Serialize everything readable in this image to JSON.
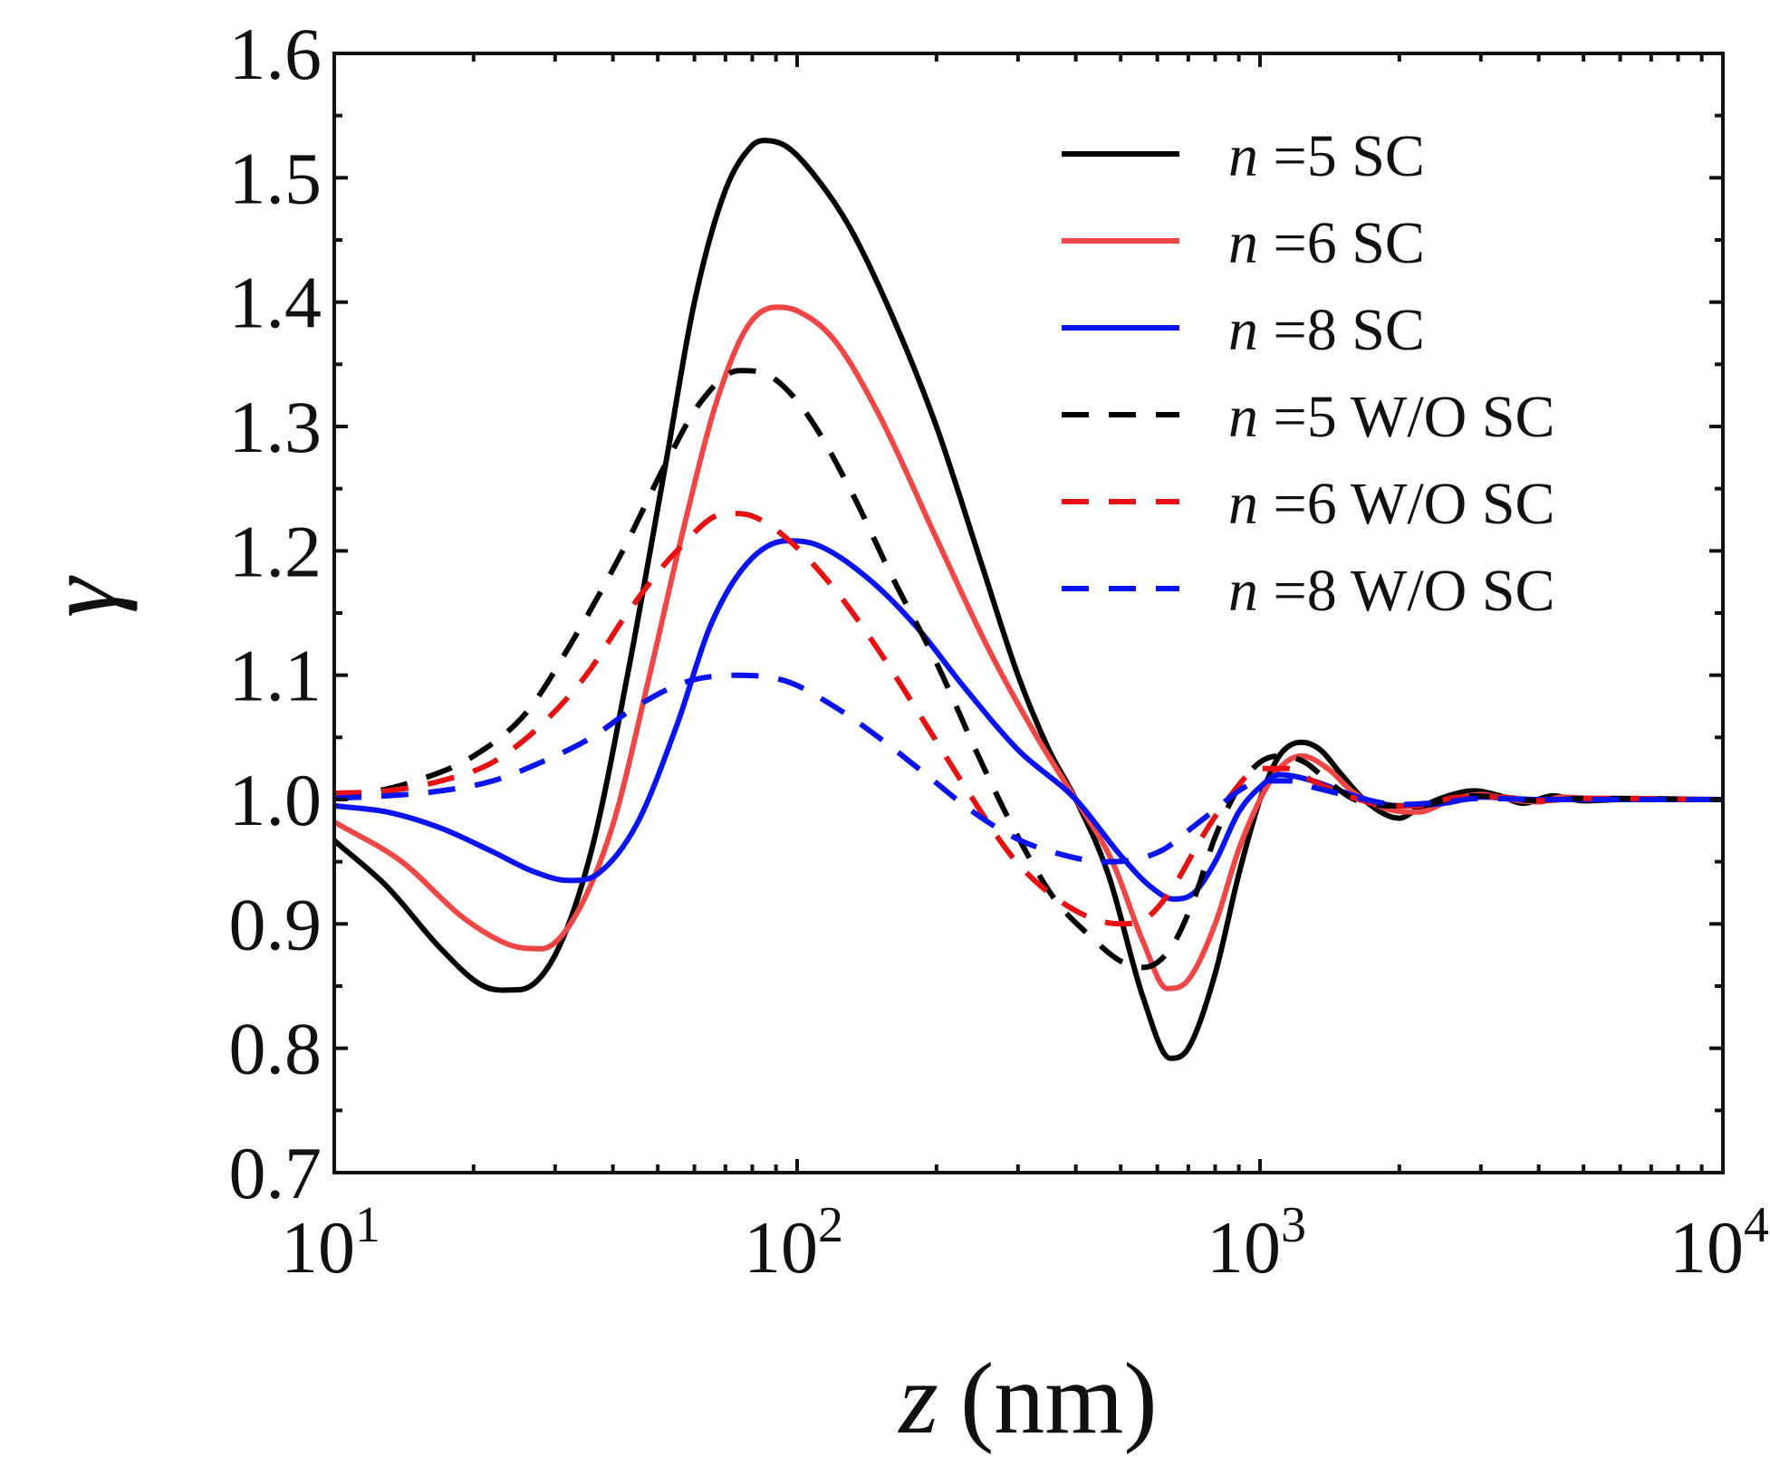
{
  "chart_data": {
    "type": "line",
    "title": "",
    "xlabel_var": "z",
    "xlabel_unit": "(nm)",
    "ylabel": "γ",
    "xscale": "log",
    "xlim": [
      10,
      10000
    ],
    "ylim": [
      0.7,
      1.6
    ],
    "grid": false,
    "legend_position": "top-right",
    "x_ticks": [
      {
        "base": "10",
        "exp": "1",
        "value": 10
      },
      {
        "base": "10",
        "exp": "2",
        "value": 100
      },
      {
        "base": "10",
        "exp": "3",
        "value": 1000
      },
      {
        "base": "10",
        "exp": "4",
        "value": 10000
      }
    ],
    "y_ticks": [
      "0.7",
      "0.8",
      "0.9",
      "1.0",
      "1.1",
      "1.2",
      "1.3",
      "1.4",
      "1.5",
      "1.6"
    ],
    "series": [
      {
        "name_var": "n",
        "name_rest": " =5 SC",
        "color": "#000000",
        "dash": "solid",
        "points": [
          [
            10,
            0.967
          ],
          [
            13,
            0.93
          ],
          [
            17,
            0.88
          ],
          [
            21,
            0.85
          ],
          [
            25,
            0.847
          ],
          [
            30,
            0.875
          ],
          [
            36,
            0.96
          ],
          [
            43,
            1.1
          ],
          [
            52,
            1.27
          ],
          [
            60,
            1.4
          ],
          [
            70,
            1.49
          ],
          [
            80,
            1.526
          ],
          [
            85,
            1.53
          ],
          [
            95,
            1.525
          ],
          [
            110,
            1.5
          ],
          [
            130,
            1.46
          ],
          [
            160,
            1.39
          ],
          [
            200,
            1.3
          ],
          [
            250,
            1.19
          ],
          [
            300,
            1.1
          ],
          [
            350,
            1.04
          ],
          [
            400,
            1.0
          ],
          [
            470,
            0.94
          ],
          [
            560,
            0.84
          ],
          [
            640,
            0.792
          ],
          [
            700,
            0.8
          ],
          [
            800,
            0.86
          ],
          [
            900,
            0.94
          ],
          [
            1000,
            1.0
          ],
          [
            1100,
            1.035
          ],
          [
            1230,
            1.046
          ],
          [
            1350,
            1.04
          ],
          [
            1500,
            1.02
          ],
          [
            1700,
            0.998
          ],
          [
            2000,
            0.985
          ],
          [
            2200,
            0.993
          ],
          [
            2500,
            1.002
          ],
          [
            2900,
            1.007
          ],
          [
            3300,
            1.003
          ],
          [
            3700,
            0.997
          ],
          [
            4300,
            1.003
          ],
          [
            5000,
            0.999
          ],
          [
            6000,
            1.0
          ],
          [
            10000,
            1.0
          ]
        ]
      },
      {
        "name_var": "n",
        "name_rest": " =6 SC",
        "color": "#f04646",
        "dash": "solid",
        "points": [
          [
            10,
            0.982
          ],
          [
            14,
            0.95
          ],
          [
            19,
            0.905
          ],
          [
            24,
            0.883
          ],
          [
            28,
            0.88
          ],
          [
            33,
            0.905
          ],
          [
            40,
            0.98
          ],
          [
            48,
            1.1
          ],
          [
            57,
            1.22
          ],
          [
            67,
            1.32
          ],
          [
            78,
            1.38
          ],
          [
            90,
            1.396
          ],
          [
            100,
            1.393
          ],
          [
            120,
            1.37
          ],
          [
            150,
            1.31
          ],
          [
            200,
            1.21
          ],
          [
            260,
            1.12
          ],
          [
            330,
            1.05
          ],
          [
            400,
            1.0
          ],
          [
            480,
            0.95
          ],
          [
            560,
            0.885
          ],
          [
            630,
            0.848
          ],
          [
            700,
            0.855
          ],
          [
            800,
            0.9
          ],
          [
            900,
            0.96
          ],
          [
            1000,
            1.0
          ],
          [
            1100,
            1.025
          ],
          [
            1230,
            1.035
          ],
          [
            1400,
            1.025
          ],
          [
            1600,
            1.005
          ],
          [
            1900,
            0.992
          ],
          [
            2200,
            0.99
          ],
          [
            2600,
            1.0
          ],
          [
            3000,
            1.004
          ],
          [
            3500,
            1.0
          ],
          [
            4000,
            0.998
          ],
          [
            4500,
            1.002
          ],
          [
            5500,
            1.0
          ],
          [
            10000,
            1.0
          ]
        ]
      },
      {
        "name_var": "n",
        "name_rest": " =8 SC",
        "color": "#0a14f0",
        "dash": "solid",
        "points": [
          [
            10,
            0.995
          ],
          [
            13,
            0.99
          ],
          [
            17,
            0.977
          ],
          [
            22,
            0.958
          ],
          [
            27,
            0.942
          ],
          [
            32,
            0.935
          ],
          [
            37,
            0.94
          ],
          [
            45,
            0.98
          ],
          [
            55,
            1.06
          ],
          [
            65,
            1.14
          ],
          [
            78,
            1.19
          ],
          [
            95,
            1.208
          ],
          [
            110,
            1.205
          ],
          [
            140,
            1.18
          ],
          [
            180,
            1.14
          ],
          [
            230,
            1.09
          ],
          [
            300,
            1.04
          ],
          [
            400,
            1.0
          ],
          [
            500,
            0.955
          ],
          [
            580,
            0.93
          ],
          [
            650,
            0.92
          ],
          [
            720,
            0.925
          ],
          [
            800,
            0.95
          ],
          [
            900,
            0.99
          ],
          [
            1000,
            1.01
          ],
          [
            1100,
            1.02
          ],
          [
            1300,
            1.015
          ],
          [
            1600,
            1.003
          ],
          [
            2000,
            0.995
          ],
          [
            2500,
            0.997
          ],
          [
            3000,
            1.002
          ],
          [
            4000,
            1.0
          ],
          [
            10000,
            1.0
          ]
        ]
      },
      {
        "name_var": "n",
        "name_rest": " =5 W/O SC",
        "color": "#000000",
        "dash": "dashed",
        "points": [
          [
            10,
            1.003
          ],
          [
            12,
            1.006
          ],
          [
            15,
            1.015
          ],
          [
            20,
            1.035
          ],
          [
            26,
            1.07
          ],
          [
            33,
            1.13
          ],
          [
            42,
            1.2
          ],
          [
            52,
            1.27
          ],
          [
            62,
            1.32
          ],
          [
            75,
            1.345
          ],
          [
            88,
            1.34
          ],
          [
            105,
            1.31
          ],
          [
            130,
            1.25
          ],
          [
            160,
            1.18
          ],
          [
            200,
            1.11
          ],
          [
            250,
            1.03
          ],
          [
            300,
            0.97
          ],
          [
            360,
            0.92
          ],
          [
            430,
            0.89
          ],
          [
            500,
            0.87
          ],
          [
            560,
            0.865
          ],
          [
            640,
            0.88
          ],
          [
            720,
            0.92
          ],
          [
            800,
            0.97
          ],
          [
            900,
            1.01
          ],
          [
            1000,
            1.03
          ],
          [
            1100,
            1.035
          ],
          [
            1250,
            1.03
          ],
          [
            1400,
            1.015
          ],
          [
            1600,
            1.0
          ],
          [
            1900,
            0.995
          ],
          [
            2200,
            0.995
          ],
          [
            2800,
            1.003
          ],
          [
            3300,
            1.002
          ],
          [
            4000,
            0.999
          ],
          [
            5000,
            1.001
          ],
          [
            10000,
            1.0
          ]
        ]
      },
      {
        "name_var": "n",
        "name_rest": " =6 W/O SC",
        "color": "#e81010",
        "dash": "dashed",
        "points": [
          [
            10,
            1.005
          ],
          [
            13,
            1.007
          ],
          [
            17,
            1.015
          ],
          [
            22,
            1.03
          ],
          [
            28,
            1.06
          ],
          [
            35,
            1.1
          ],
          [
            43,
            1.15
          ],
          [
            55,
            1.2
          ],
          [
            70,
            1.23
          ],
          [
            80,
            1.228
          ],
          [
            95,
            1.21
          ],
          [
            120,
            1.17
          ],
          [
            150,
            1.12
          ],
          [
            190,
            1.06
          ],
          [
            240,
            1.0
          ],
          [
            290,
            0.955
          ],
          [
            350,
            0.925
          ],
          [
            430,
            0.905
          ],
          [
            500,
            0.9
          ],
          [
            570,
            0.905
          ],
          [
            650,
            0.93
          ],
          [
            750,
            0.97
          ],
          [
            850,
            1.0
          ],
          [
            1000,
            1.025
          ],
          [
            1150,
            1.025
          ],
          [
            1300,
            1.015
          ],
          [
            1500,
            1.005
          ],
          [
            1800,
            0.996
          ],
          [
            2200,
            0.995
          ],
          [
            2700,
            1.002
          ],
          [
            3300,
            1.002
          ],
          [
            4000,
            0.999
          ],
          [
            5000,
            1.001
          ],
          [
            10000,
            1.0
          ]
        ]
      },
      {
        "name_var": "n",
        "name_rest": " =8 W/O SC",
        "color": "#0a14f0",
        "dash": "dashed",
        "points": [
          [
            10,
            1.001
          ],
          [
            13,
            1.003
          ],
          [
            17,
            1.007
          ],
          [
            22,
            1.015
          ],
          [
            28,
            1.03
          ],
          [
            36,
            1.05
          ],
          [
            45,
            1.075
          ],
          [
            58,
            1.095
          ],
          [
            75,
            1.1
          ],
          [
            95,
            1.095
          ],
          [
            120,
            1.075
          ],
          [
            150,
            1.05
          ],
          [
            190,
            1.02
          ],
          [
            240,
            0.99
          ],
          [
            300,
            0.968
          ],
          [
            380,
            0.955
          ],
          [
            460,
            0.95
          ],
          [
            540,
            0.952
          ],
          [
            620,
            0.96
          ],
          [
            700,
            0.975
          ],
          [
            800,
            0.992
          ],
          [
            900,
            1.007
          ],
          [
            1000,
            1.015
          ],
          [
            1150,
            1.015
          ],
          [
            1300,
            1.01
          ],
          [
            1600,
            1.002
          ],
          [
            2000,
            0.996
          ],
          [
            2500,
            0.998
          ],
          [
            3000,
            1.001
          ],
          [
            4000,
            1.0
          ],
          [
            10000,
            1.0
          ]
        ]
      }
    ]
  }
}
